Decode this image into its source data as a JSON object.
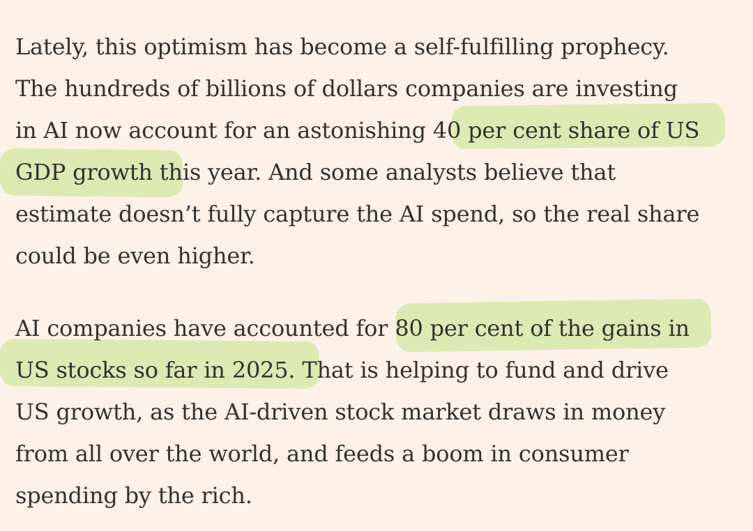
{
  "article": {
    "paragraphs": [
      {
        "lines": [
          [
            "Lately, this optimism has become a self-fulfilling prophecy."
          ],
          [
            "The hundreds of billions of dollars companies are investing"
          ],
          [
            "in AI now account for an astonishing ",
            "40 per cent share of US"
          ],
          [
            "GDP growth this year. And some analysts believe that"
          ],
          [
            "estimate doesn’t fully capture the AI spend, so the real share"
          ],
          [
            "could be even higher."
          ]
        ]
      },
      {
        "lines": [
          [
            "AI companies have accounted for ",
            "80 per cent of the gains in"
          ],
          [
            "US stocks so far in 2025.",
            " That is helping to fund and drive"
          ],
          [
            "US growth, as the AI-driven stock market draws in money"
          ],
          [
            "from all over the world, and feeds a boom in consumer"
          ],
          [
            "spending by the rich."
          ]
        ]
      }
    ],
    "highlight_color": "#dbe8b0",
    "text_color": "#33302e",
    "background_color": "#fdf1e8"
  }
}
